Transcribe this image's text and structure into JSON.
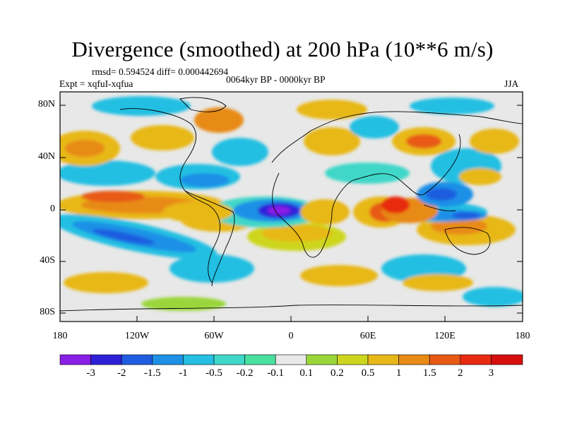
{
  "title": "Divergence (smoothed) at 200 hPa (10**6 m/s)",
  "stats": "rmsd= 0.594524 diff= 0.000442694",
  "expt": "Expt = xqfuI-xqfua",
  "period": "0064kyr BP - 0000kyr BP",
  "season": "JJA",
  "lat_labels": [
    "80N",
    "40N",
    "0",
    "40S",
    "80S"
  ],
  "lon_labels": [
    "180",
    "120W",
    "60W",
    "0",
    "60E",
    "120E",
    "180"
  ],
  "colorbar": {
    "labels": [
      "-3",
      "-2",
      "-1.5",
      "-1",
      "-0.5",
      "-0.2",
      "-0.1",
      "0.1",
      "0.2",
      "0.5",
      "1",
      "1.5",
      "2",
      "3"
    ],
    "colors": [
      "#8a1fe6",
      "#2f20d8",
      "#1f5de0",
      "#1e90e6",
      "#24bfe2",
      "#3fd7c8",
      "#49e0a0",
      "#e8e8e8",
      "#9ad63a",
      "#cdd61e",
      "#e8b818",
      "#e88a14",
      "#e85a14",
      "#e82a10",
      "#d60e0e"
    ]
  },
  "colors": {
    "background_field": "#e8e8e8",
    "frame": "#000000"
  }
}
